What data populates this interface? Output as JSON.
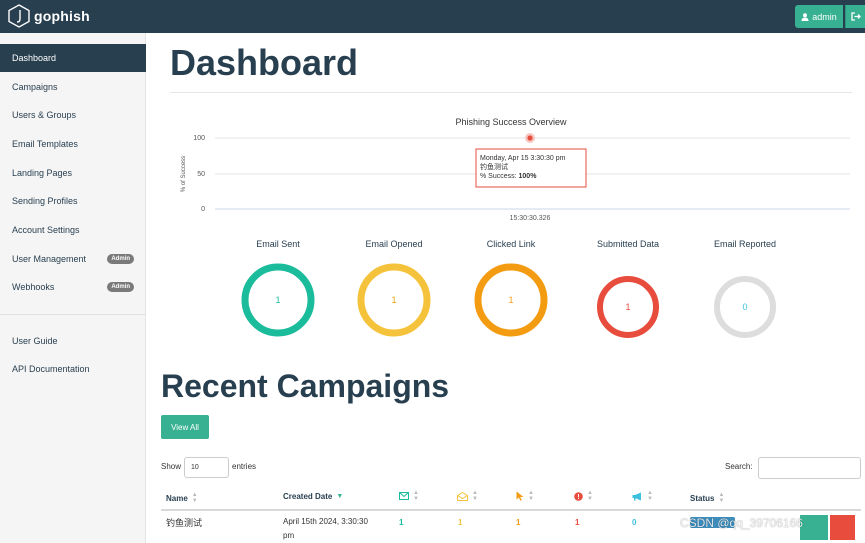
{
  "navbar": {
    "brand": "gophish",
    "user_button": "admin"
  },
  "sidebar": {
    "items": [
      {
        "label": "Dashboard"
      },
      {
        "label": "Campaigns"
      },
      {
        "label": "Users & Groups"
      },
      {
        "label": "Email Templates"
      },
      {
        "label": "Landing Pages"
      },
      {
        "label": "Sending Profiles"
      },
      {
        "label": "Account Settings"
      },
      {
        "label": "User Management",
        "badge": "Admin"
      },
      {
        "label": "Webhooks",
        "badge": "Admin"
      },
      {
        "label": "User Guide"
      },
      {
        "label": "API Documentation"
      }
    ]
  },
  "page_title": "Dashboard",
  "chart_data": {
    "type": "scatter",
    "title": "Phishing Success Overview",
    "ylabel": "% of Success",
    "yticks": [
      "100",
      "50",
      "0"
    ],
    "ylim": [
      0,
      100
    ],
    "xtick": "15:30:30.326",
    "points": [
      {
        "x": "15:30:30.326",
        "y": 100
      }
    ],
    "tooltip": {
      "line1": "Monday, Apr 15 3:30:30 pm",
      "line2": "钓鱼测试",
      "line3_label": "% Success: ",
      "line3_value": "100%"
    }
  },
  "stats": [
    {
      "label": "Email Sent",
      "value": "1",
      "color": "#1abc9c"
    },
    {
      "label": "Email Opened",
      "value": "1",
      "color": "#f4c33b"
    },
    {
      "label": "Clicked Link",
      "value": "1",
      "color": "#f39c12"
    },
    {
      "label": "Submitted Data",
      "value": "1",
      "color": "#e74c3c"
    },
    {
      "label": "Email Reported",
      "value": "0",
      "color": "#dddddd"
    }
  ],
  "recent": {
    "title": "Recent Campaigns",
    "view_all": "View All",
    "show": "Show",
    "show_value": "10",
    "entries": "entries",
    "search": "Search:",
    "columns": {
      "name": "Name",
      "created": "Created Date",
      "status": "Status"
    },
    "row": {
      "name": "钓鱼测试",
      "created_line1": "April 15th 2024, 3:30:30",
      "created_line2": "pm",
      "sent": "1",
      "opened": "1",
      "clicked": "1",
      "submitted": "1",
      "reported": "0"
    },
    "watermark": "CSDN @qq_39706166"
  }
}
